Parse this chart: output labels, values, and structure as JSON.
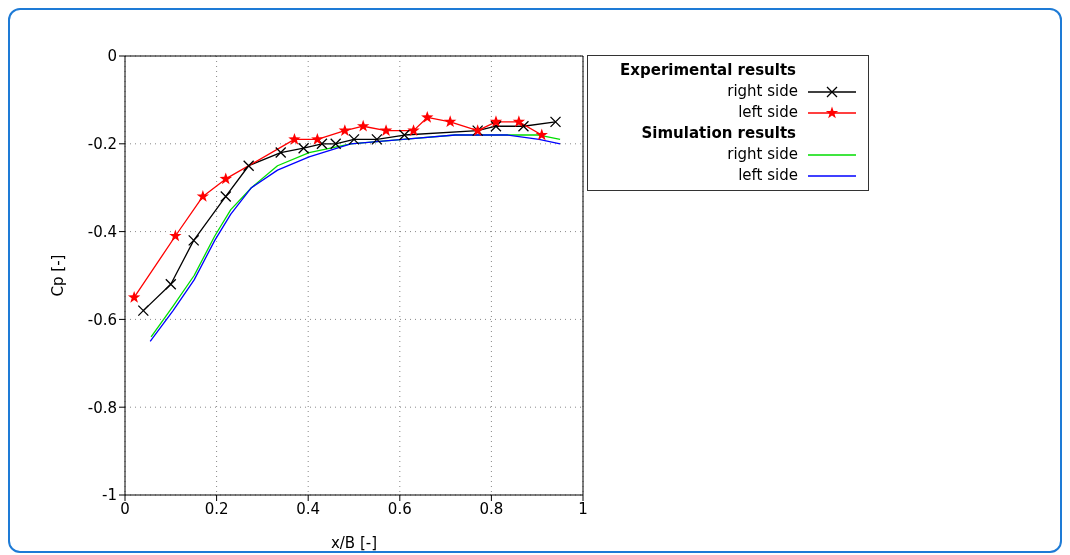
{
  "chart_data": {
    "type": "line",
    "xlabel": "x/B [-]",
    "ylabel": "Cp [-]",
    "xlim": [
      0,
      1
    ],
    "xticks": [
      0,
      0.2,
      0.4,
      0.6,
      0.8,
      1
    ],
    "ylim": [
      -1,
      0
    ],
    "yticks": [
      -1,
      -0.8,
      -0.6,
      -0.4,
      -0.2,
      0
    ],
    "grid": true,
    "legend": "top right",
    "annotations": [
      "Experimental results",
      "Simulation results"
    ],
    "series": [
      {
        "name": "right side",
        "color": "#000000",
        "marker": "cross",
        "x": [
          0.04,
          0.1,
          0.15,
          0.22,
          0.27,
          0.34,
          0.39,
          0.43,
          0.46,
          0.5,
          0.55,
          0.61,
          0.77,
          0.81,
          0.87,
          0.94
        ],
        "values": [
          -0.58,
          -0.52,
          -0.42,
          -0.32,
          -0.25,
          -0.22,
          -0.21,
          -0.2,
          -0.2,
          -0.19,
          -0.19,
          -0.18,
          -0.17,
          -0.16,
          -0.16,
          -0.15
        ]
      },
      {
        "name": "left side",
        "color": "#ff0000",
        "marker": "star",
        "x": [
          0.02,
          0.11,
          0.17,
          0.22,
          0.37,
          0.42,
          0.48,
          0.52,
          0.57,
          0.63,
          0.66,
          0.71,
          0.77,
          0.81,
          0.86,
          0.91
        ],
        "values": [
          -0.55,
          -0.41,
          -0.32,
          -0.28,
          -0.19,
          -0.19,
          -0.17,
          -0.16,
          -0.17,
          -0.17,
          -0.14,
          -0.15,
          -0.17,
          -0.15,
          -0.15,
          -0.18
        ]
      },
      {
        "name": "right side",
        "color": "#00dd00",
        "marker": "none",
        "x": [
          0.057,
          0.105,
          0.151,
          0.196,
          0.231,
          0.276,
          0.333,
          0.402,
          0.493,
          0.607,
          0.721,
          0.836,
          0.904,
          0.95
        ],
        "values": [
          -0.64,
          -0.57,
          -0.5,
          -0.41,
          -0.35,
          -0.3,
          -0.25,
          -0.22,
          -0.2,
          -0.19,
          -0.18,
          -0.18,
          -0.18,
          -0.19
        ]
      },
      {
        "name": "left side",
        "color": "#0000ff",
        "marker": "none",
        "x": [
          0.055,
          0.105,
          0.151,
          0.196,
          0.231,
          0.276,
          0.333,
          0.402,
          0.493,
          0.607,
          0.721,
          0.836,
          0.904,
          0.95
        ],
        "values": [
          -0.65,
          -0.58,
          -0.51,
          -0.42,
          -0.36,
          -0.3,
          -0.26,
          -0.23,
          -0.2,
          -0.19,
          -0.18,
          -0.18,
          -0.19,
          -0.2
        ]
      }
    ]
  }
}
